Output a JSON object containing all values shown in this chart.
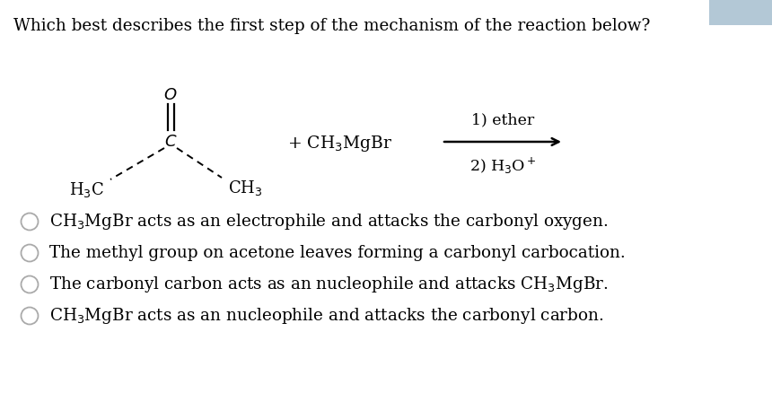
{
  "title": "Which best describes the first step of the mechanism of the reaction below?",
  "title_fontsize": 13.2,
  "background_color": "#ffffff",
  "options": [
    "CH$_3$MgBr acts as an electrophile and attacks the carbonyl oxygen.",
    "The methyl group on acetone leaves forming a carbonyl carbocation.",
    "The carbonyl carbon acts as an nucleophile and attacks CH$_3$MgBr.",
    "CH$_3$MgBr acts as an nucleophile and attacks the carbonyl carbon."
  ],
  "option_fontsize": 13.2,
  "reaction_label_1": "1) ether",
  "reaction_label_2": "2) H$_3$O$^+$",
  "plus_reagent": "+ CH$_3$MgBr",
  "reagent_fontsize": 13.5,
  "corner_color": "#b3c8d6",
  "circle_color": "#aaaaaa"
}
